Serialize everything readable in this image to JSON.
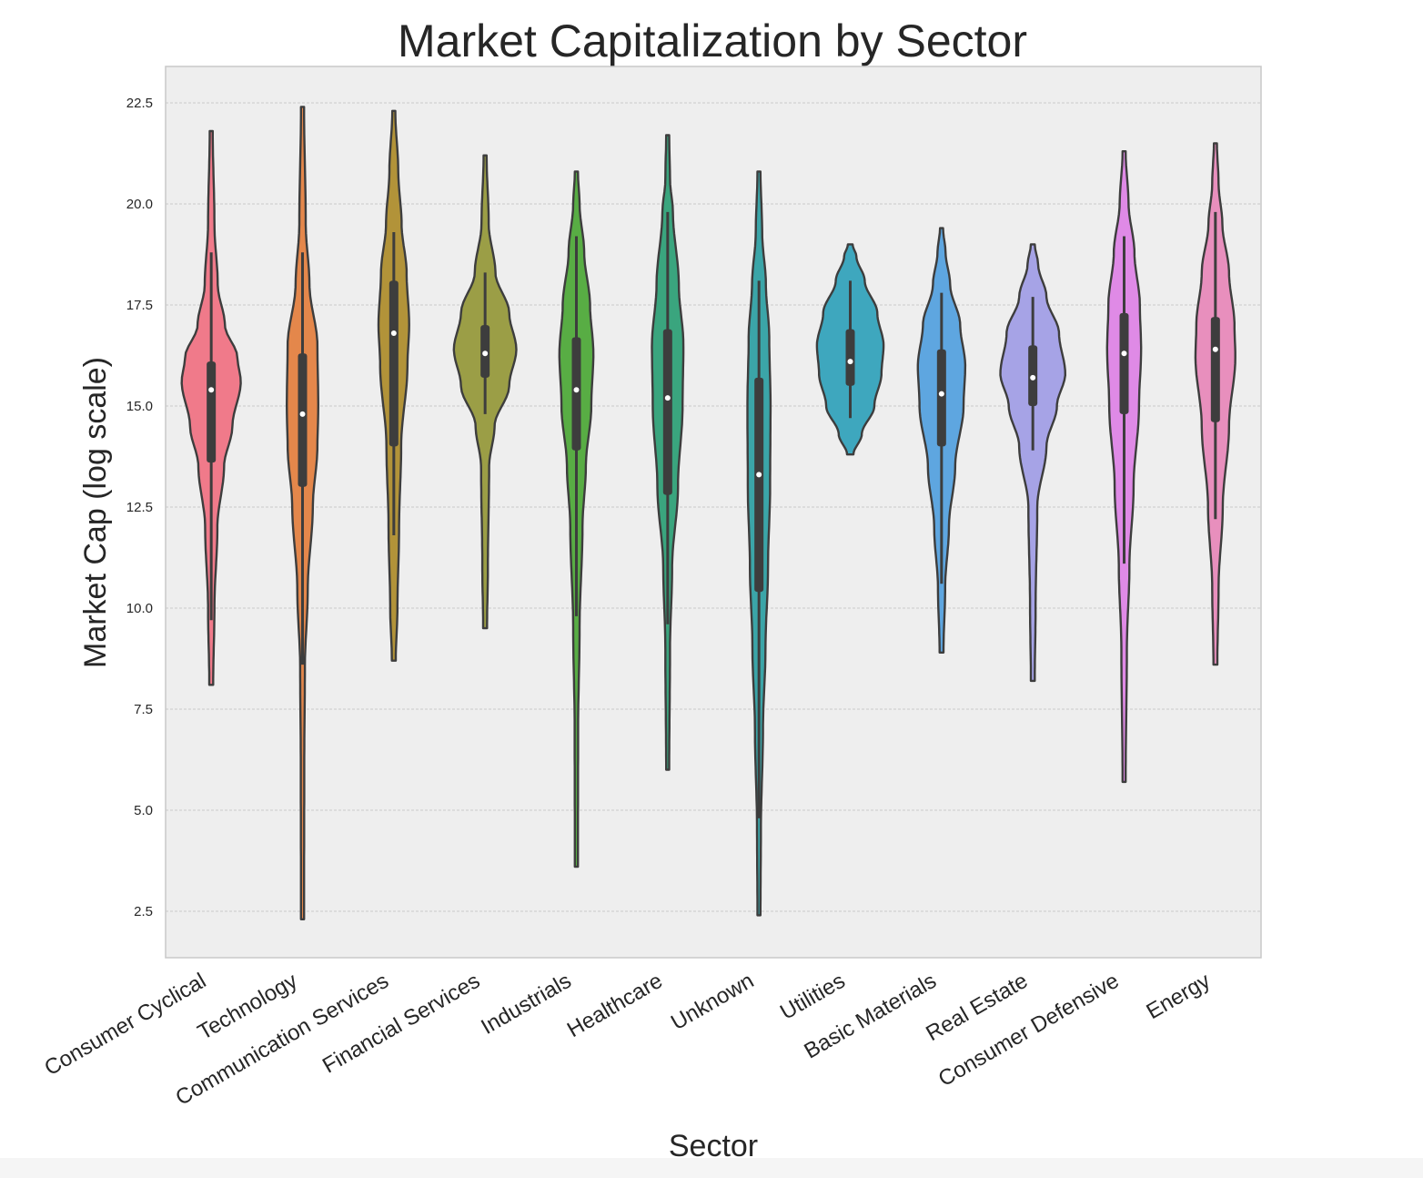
{
  "chart_data": {
    "type": "violin",
    "title": "Market Capitalization by Sector",
    "xlabel": "Sector",
    "ylabel": "Market Cap (log scale)",
    "ylim": [
      1.35,
      23.4
    ],
    "yticks": [
      2.5,
      5.0,
      7.5,
      10.0,
      12.5,
      15.0,
      17.5,
      20.0,
      22.5
    ],
    "ytick_labels": [
      "2.5",
      "5.0",
      "7.5",
      "10.0",
      "12.5",
      "15.0",
      "17.5",
      "20.0",
      "22.5"
    ],
    "grid": "horizontal",
    "categories": [
      "Consumer Cyclical",
      "Technology",
      "Communication Services",
      "Financial Services",
      "Industrials",
      "Healthcare",
      "Unknown",
      "Utilities",
      "Basic Materials",
      "Real Estate",
      "Consumer Defensive",
      "Energy"
    ],
    "series": [
      {
        "color": "#f07a8a",
        "min": 8.1,
        "q1": 13.6,
        "median": 15.4,
        "q3": 16.1,
        "max": 21.8,
        "whisker_low": 9.7,
        "whisker_high": 18.8,
        "density": [
          [
            8.1,
            0.02
          ],
          [
            10,
            0.05
          ],
          [
            12,
            0.12
          ],
          [
            13.5,
            0.28
          ],
          [
            14.5,
            0.48
          ],
          [
            15.6,
            0.68
          ],
          [
            16.2,
            0.6
          ],
          [
            17,
            0.3
          ],
          [
            18,
            0.13
          ],
          [
            19.5,
            0.05
          ],
          [
            21.8,
            0.01
          ]
        ]
      },
      {
        "color": "#e4874b",
        "min": 2.3,
        "q1": 13.0,
        "median": 14.8,
        "q3": 16.3,
        "max": 22.4,
        "whisker_low": 8.6,
        "whisker_high": 18.8,
        "density": [
          [
            2.3,
            0.01
          ],
          [
            6,
            0.015
          ],
          [
            8.5,
            0.03
          ],
          [
            10.5,
            0.1
          ],
          [
            12.5,
            0.22
          ],
          [
            14,
            0.33
          ],
          [
            15,
            0.35
          ],
          [
            16.5,
            0.33
          ],
          [
            18,
            0.14
          ],
          [
            19.5,
            0.05
          ],
          [
            22.4,
            0.01
          ]
        ]
      },
      {
        "color": "#b29339",
        "min": 8.7,
        "q1": 14.0,
        "median": 16.8,
        "q3": 18.1,
        "max": 22.3,
        "whisker_low": 11.8,
        "whisker_high": 19.3,
        "density": [
          [
            8.7,
            0.02
          ],
          [
            10,
            0.06
          ],
          [
            12,
            0.1
          ],
          [
            14,
            0.15
          ],
          [
            16,
            0.3
          ],
          [
            17,
            0.34
          ],
          [
            18.3,
            0.28
          ],
          [
            19.5,
            0.16
          ],
          [
            20.8,
            0.08
          ],
          [
            22.3,
            0.01
          ]
        ]
      },
      {
        "color": "#9b9e46",
        "min": 9.5,
        "q1": 15.7,
        "median": 16.3,
        "q3": 17.0,
        "max": 21.2,
        "whisker_low": 14.8,
        "whisker_high": 18.3,
        "density": [
          [
            9.5,
            0.02
          ],
          [
            11,
            0.04
          ],
          [
            13.5,
            0.07
          ],
          [
            14.5,
            0.2
          ],
          [
            15.5,
            0.55
          ],
          [
            16.4,
            0.72
          ],
          [
            17.3,
            0.55
          ],
          [
            18.3,
            0.22
          ],
          [
            19.5,
            0.06
          ],
          [
            21.2,
            0.01
          ]
        ]
      },
      {
        "color": "#58ad44",
        "min": 3.6,
        "q1": 13.9,
        "median": 15.4,
        "q3": 16.7,
        "max": 20.8,
        "whisker_low": 9.8,
        "whisker_high": 19.2,
        "density": [
          [
            3.6,
            0.01
          ],
          [
            7,
            0.015
          ],
          [
            9.5,
            0.05
          ],
          [
            12,
            0.12
          ],
          [
            13.5,
            0.2
          ],
          [
            15,
            0.33
          ],
          [
            16.3,
            0.38
          ],
          [
            17.5,
            0.3
          ],
          [
            18.8,
            0.16
          ],
          [
            20,
            0.05
          ],
          [
            20.8,
            0.01
          ]
        ]
      },
      {
        "color": "#3aa57e",
        "min": 6.0,
        "q1": 12.8,
        "median": 15.2,
        "q3": 16.9,
        "max": 21.7,
        "whisker_low": 9.6,
        "whisker_high": 19.8,
        "density": [
          [
            6,
            0.01
          ],
          [
            9,
            0.03
          ],
          [
            11,
            0.08
          ],
          [
            13,
            0.22
          ],
          [
            15,
            0.33
          ],
          [
            16.5,
            0.35
          ],
          [
            18,
            0.24
          ],
          [
            19.8,
            0.1
          ],
          [
            20.6,
            0.03
          ],
          [
            21.7,
            0.01
          ]
        ]
      },
      {
        "color": "#3ba5a8",
        "min": 2.4,
        "q1": 10.4,
        "median": 13.3,
        "q3": 15.7,
        "max": 20.8,
        "whisker_low": 4.8,
        "whisker_high": 18.1,
        "density": [
          [
            2.4,
            0.01
          ],
          [
            4.5,
            0.02
          ],
          [
            7,
            0.07
          ],
          [
            9,
            0.13
          ],
          [
            11,
            0.19
          ],
          [
            13,
            0.24
          ],
          [
            15,
            0.25
          ],
          [
            16.7,
            0.22
          ],
          [
            18,
            0.14
          ],
          [
            19.3,
            0.05
          ],
          [
            20.8,
            0.01
          ]
        ]
      },
      {
        "color": "#3ea7be",
        "min": 13.8,
        "q1": 15.5,
        "median": 16.1,
        "q3": 16.9,
        "max": 19.0,
        "whisker_low": 14.7,
        "whisker_high": 18.1,
        "density": [
          [
            13.8,
            0.05
          ],
          [
            14.3,
            0.25
          ],
          [
            15,
            0.55
          ],
          [
            15.8,
            0.72
          ],
          [
            16.5,
            0.77
          ],
          [
            17.3,
            0.62
          ],
          [
            18.1,
            0.32
          ],
          [
            18.7,
            0.12
          ],
          [
            19,
            0.03
          ]
        ]
      },
      {
        "color": "#5ea6e0",
        "min": 8.9,
        "q1": 14.0,
        "median": 15.3,
        "q3": 16.4,
        "max": 19.4,
        "whisker_low": 10.6,
        "whisker_high": 17.8,
        "density": [
          [
            8.9,
            0.02
          ],
          [
            10.5,
            0.06
          ],
          [
            12,
            0.15
          ],
          [
            13.5,
            0.3
          ],
          [
            15,
            0.5
          ],
          [
            16,
            0.54
          ],
          [
            17,
            0.42
          ],
          [
            18,
            0.18
          ],
          [
            18.8,
            0.07
          ],
          [
            19.4,
            0.01
          ]
        ]
      },
      {
        "color": "#a6a3e6",
        "min": 8.2,
        "q1": 15.0,
        "median": 15.7,
        "q3": 16.5,
        "max": 19.0,
        "whisker_low": 13.9,
        "whisker_high": 17.7,
        "density": [
          [
            8.2,
            0.02
          ],
          [
            10,
            0.04
          ],
          [
            12.5,
            0.08
          ],
          [
            14,
            0.3
          ],
          [
            15,
            0.55
          ],
          [
            15.8,
            0.75
          ],
          [
            16.8,
            0.6
          ],
          [
            17.7,
            0.3
          ],
          [
            18.5,
            0.1
          ],
          [
            19,
            0.02
          ]
        ]
      },
      {
        "color": "#df8ae6",
        "min": 5.7,
        "q1": 14.8,
        "median": 16.3,
        "q3": 17.3,
        "max": 21.3,
        "whisker_low": 11.1,
        "whisker_high": 19.2,
        "density": [
          [
            5.7,
            0.01
          ],
          [
            9,
            0.04
          ],
          [
            11,
            0.1
          ],
          [
            13,
            0.2
          ],
          [
            15,
            0.33
          ],
          [
            16.4,
            0.38
          ],
          [
            17.5,
            0.35
          ],
          [
            18.8,
            0.22
          ],
          [
            20,
            0.08
          ],
          [
            21.3,
            0.01
          ]
        ]
      },
      {
        "color": "#e88fbd",
        "min": 8.6,
        "q1": 14.6,
        "median": 16.4,
        "q3": 17.2,
        "max": 21.5,
        "whisker_low": 12.2,
        "whisker_high": 19.8,
        "density": [
          [
            8.6,
            0.02
          ],
          [
            10.5,
            0.05
          ],
          [
            12.5,
            0.15
          ],
          [
            14.5,
            0.3
          ],
          [
            16.2,
            0.45
          ],
          [
            17,
            0.43
          ],
          [
            18.3,
            0.3
          ],
          [
            19.5,
            0.14
          ],
          [
            20.5,
            0.05
          ],
          [
            21.5,
            0.01
          ]
        ]
      }
    ]
  }
}
